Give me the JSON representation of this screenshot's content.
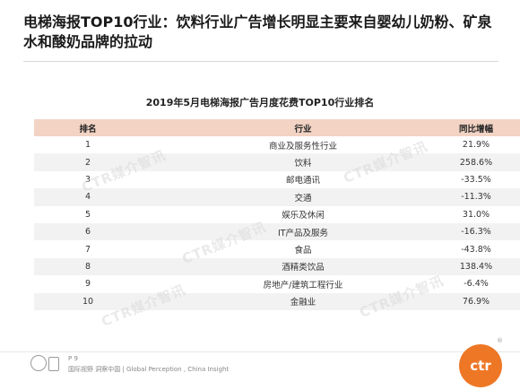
{
  "slide": {
    "title": "电梯海报TOP10行业：饮料行业广告增长明显主要来自婴幼儿奶粉、矿泉水和酸奶品牌的拉动"
  },
  "table": {
    "caption": "2019年5月电梯海报广告月度花费TOP10行业排名",
    "headers": {
      "rank": "排名",
      "industry": "行业",
      "yoy": "同比增幅"
    },
    "rows": [
      {
        "rank": "1",
        "industry": "商业及服务性行业",
        "yoy": "21.9%"
      },
      {
        "rank": "2",
        "industry": "饮料",
        "yoy": "258.6%"
      },
      {
        "rank": "3",
        "industry": "邮电通讯",
        "yoy": "-33.5%"
      },
      {
        "rank": "4",
        "industry": "交通",
        "yoy": "-11.3%"
      },
      {
        "rank": "5",
        "industry": "娱乐及休闲",
        "yoy": "31.0%"
      },
      {
        "rank": "6",
        "industry": "IT产品及服务",
        "yoy": "-16.3%"
      },
      {
        "rank": "7",
        "industry": "食品",
        "yoy": "-43.8%"
      },
      {
        "rank": "8",
        "industry": "酒精类饮品",
        "yoy": "138.4%"
      },
      {
        "rank": "9",
        "industry": "房地产/建筑工程行业",
        "yoy": "-6.4%"
      },
      {
        "rank": "10",
        "industry": "金融业",
        "yoy": "76.9%"
      }
    ]
  },
  "watermark": {
    "text": "CTR媒介智讯"
  },
  "footer": {
    "page": "P 9",
    "tagline": "国际视野 洞察中国 | Global Perception , China Insight"
  },
  "logo": {
    "text": "ctr",
    "mark": "®",
    "color": "#ee7726"
  },
  "colors": {
    "header_bg": "#f2d3c4",
    "alt_row_bg": "#f2f2f2"
  }
}
